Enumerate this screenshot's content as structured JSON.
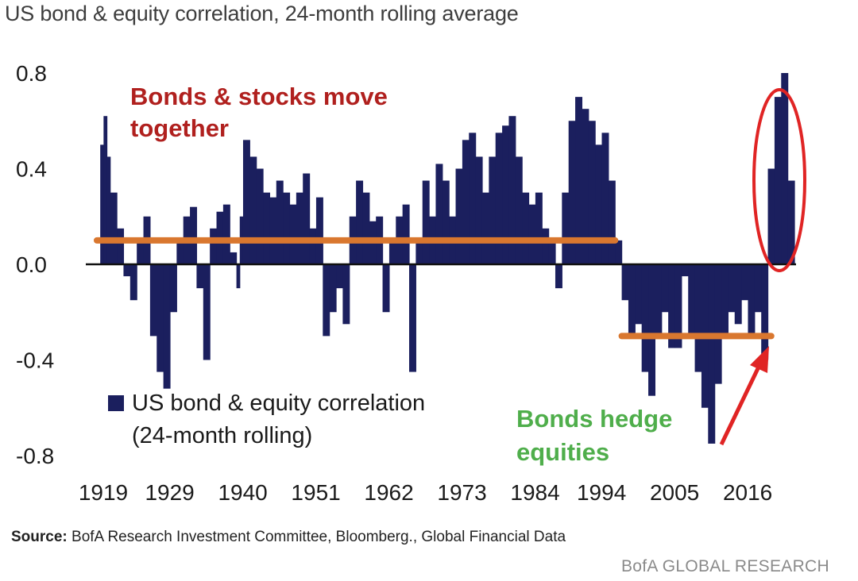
{
  "colors": {
    "bar": "#1b1f5e",
    "highlight_line": "#d9772f",
    "circle": "#e02424",
    "arrow": "#e02424",
    "zero_line": "#111111"
  },
  "chart_data": {
    "type": "bar",
    "title": "US bond & equity correlation, 24-month rolling average",
    "xlabel": "",
    "ylabel": "",
    "ylim": [
      -0.8,
      0.8
    ],
    "yticks": [
      0.8,
      0.4,
      0.0,
      -0.4,
      -0.8
    ],
    "ytick_labels": [
      "0.8",
      "0.4",
      "0.0",
      "-0.4",
      "-0.8"
    ],
    "xlim": [
      1919,
      2024
    ],
    "xtick_labels": [
      "1919",
      "1929",
      "1940",
      "1951",
      "1962",
      "1973",
      "1984",
      "1994",
      "2005",
      "2016"
    ],
    "xtick_years": [
      1919,
      1929,
      1940,
      1951,
      1962,
      1973,
      1984,
      1994,
      2005,
      2016
    ],
    "series": [
      {
        "name": "US bond & equity correlation (24-month rolling)",
        "x": [
          1919.5,
          1920,
          1920.5,
          1921,
          1922,
          1923,
          1924,
          1925,
          1926,
          1927,
          1928,
          1929,
          1930,
          1931,
          1932,
          1933,
          1934,
          1935,
          1936,
          1937,
          1938,
          1939,
          1940,
          1940.5,
          1941,
          1942,
          1943,
          1944,
          1945,
          1946,
          1947,
          1948,
          1949,
          1950,
          1951,
          1952,
          1953,
          1954,
          1955,
          1956,
          1957,
          1958,
          1959,
          1960,
          1961,
          1962,
          1963,
          1964,
          1965,
          1966,
          1967,
          1968,
          1969,
          1970,
          1971,
          1972,
          1973,
          1974,
          1975,
          1976,
          1977,
          1978,
          1979,
          1980,
          1981,
          1982,
          1983,
          1984,
          1985,
          1986,
          1987,
          1988,
          1989,
          1990,
          1991,
          1992,
          1993,
          1994,
          1995,
          1996,
          1997,
          1998,
          1999,
          2000,
          2001,
          2002,
          2003,
          2004,
          2005,
          2006,
          2007,
          2008,
          2009,
          2010,
          2011,
          2012,
          2013,
          2014,
          2015,
          2016,
          2017,
          2018,
          2019,
          2020,
          2021,
          2022,
          2023
        ],
        "values": [
          0.5,
          0.62,
          0.45,
          0.3,
          0.15,
          -0.05,
          -0.15,
          0.1,
          0.2,
          -0.3,
          -0.45,
          -0.52,
          -0.2,
          0.1,
          0.2,
          0.24,
          -0.1,
          -0.4,
          0.15,
          0.22,
          0.25,
          0.05,
          -0.1,
          0.2,
          0.52,
          0.45,
          0.4,
          0.3,
          0.28,
          0.35,
          0.3,
          0.25,
          0.3,
          0.38,
          0.15,
          0.28,
          -0.3,
          -0.2,
          -0.1,
          -0.25,
          0.2,
          0.35,
          0.3,
          0.18,
          0.2,
          -0.2,
          0.1,
          0.2,
          0.25,
          -0.45,
          0.1,
          0.35,
          0.2,
          0.42,
          0.35,
          0.2,
          0.4,
          0.52,
          0.55,
          0.45,
          0.3,
          0.45,
          0.55,
          0.58,
          0.62,
          0.45,
          0.3,
          0.25,
          0.3,
          0.15,
          0.1,
          -0.1,
          0.3,
          0.6,
          0.7,
          0.65,
          0.6,
          0.5,
          0.55,
          0.35,
          0.1,
          -0.15,
          -0.3,
          -0.25,
          -0.45,
          -0.55,
          -0.3,
          -0.2,
          -0.35,
          -0.35,
          -0.05,
          -0.3,
          -0.45,
          -0.6,
          -0.75,
          -0.5,
          -0.3,
          -0.2,
          -0.25,
          -0.15,
          -0.3,
          -0.2,
          -0.4,
          0.4,
          0.7,
          0.8,
          0.35
        ]
      }
    ],
    "reference_lines": [
      {
        "name": "bonds-stocks-move-together-avg",
        "from": 1919,
        "to": 1997,
        "value": 0.1
      },
      {
        "name": "bonds-hedge-equities-avg",
        "from": 1998,
        "to": 2020.5,
        "value": -0.3
      }
    ],
    "annotations": {
      "together_line1": "Bonds & stocks move",
      "together_line2": "together",
      "hedge_line1": "Bonds hedge",
      "hedge_line2": "equities"
    },
    "legend": {
      "line1": "US bond & equity correlation",
      "line2": "(24-month rolling)",
      "position": "bottom-left"
    }
  },
  "footer": {
    "source_label": "Source:",
    "source_text": "BofA Research Investment Committee, Bloomberg., Global Financial Data",
    "brand": "BofA GLOBAL RESEARCH"
  }
}
